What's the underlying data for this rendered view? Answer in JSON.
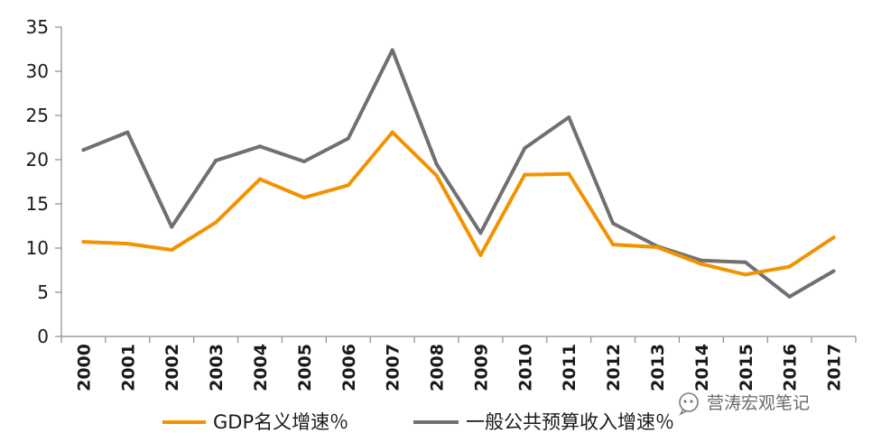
{
  "chart_data": {
    "type": "line",
    "title": "",
    "xlabel": "",
    "ylabel": "",
    "x": [
      "2000",
      "2001",
      "2002",
      "2003",
      "2004",
      "2005",
      "2006",
      "2007",
      "2008",
      "2009",
      "2010",
      "2011",
      "2012",
      "2013",
      "2014",
      "2015",
      "2016",
      "2017"
    ],
    "ylim": [
      0,
      35
    ],
    "yticks": [
      0,
      5,
      10,
      15,
      20,
      25,
      30,
      35
    ],
    "grid": false,
    "legend_position": "bottom",
    "series": [
      {
        "name": "GDP名义增速％",
        "color": "#f39200",
        "values": [
          10.7,
          10.5,
          9.8,
          12.9,
          17.8,
          15.7,
          17.1,
          23.1,
          18.2,
          9.2,
          18.3,
          18.4,
          10.4,
          10.1,
          8.2,
          7.0,
          7.9,
          11.2
        ]
      },
      {
        "name": "一般公共预算收入增速％",
        "color": "#707070",
        "values": [
          21.1,
          23.1,
          12.4,
          19.9,
          21.5,
          19.8,
          22.4,
          32.4,
          19.5,
          11.7,
          21.3,
          24.8,
          12.8,
          10.2,
          8.6,
          8.4,
          4.5,
          7.4
        ]
      }
    ]
  },
  "watermark": {
    "text": "营涛宏观笔记",
    "icon": "wechat-icon"
  }
}
